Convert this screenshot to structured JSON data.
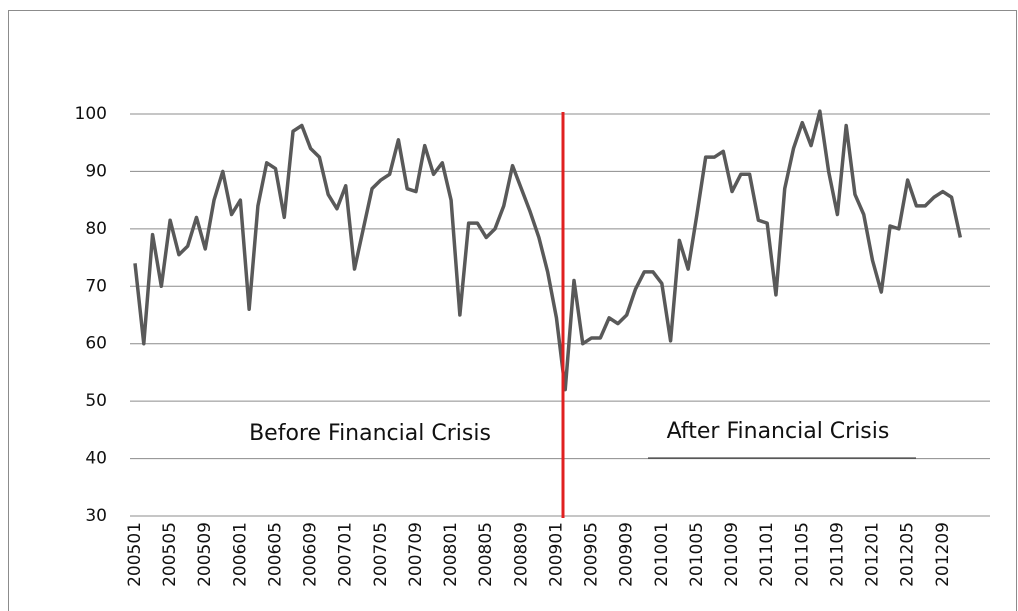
{
  "chart_data": {
    "type": "line",
    "categories": [
      "200501",
      null,
      null,
      null,
      "200505",
      null,
      null,
      null,
      "200509",
      null,
      null,
      null,
      "200601",
      null,
      null,
      null,
      "200605",
      null,
      null,
      null,
      "200609",
      null,
      null,
      null,
      "200701",
      null,
      null,
      null,
      "200705",
      null,
      null,
      null,
      "200709",
      null,
      null,
      null,
      "200801",
      null,
      null,
      null,
      "200805",
      null,
      null,
      null,
      "200809",
      null,
      null,
      null,
      "200901",
      null,
      null,
      null,
      "200905",
      null,
      null,
      null,
      "200909",
      null,
      null,
      null,
      "201001",
      null,
      null,
      null,
      "201005",
      null,
      null,
      null,
      "201009",
      null,
      null,
      null,
      "201101",
      null,
      null,
      null,
      "201105",
      null,
      null,
      null,
      "201109",
      null,
      null,
      null,
      "201201",
      null,
      null,
      null,
      "201205",
      null,
      null,
      null,
      "201209",
      null,
      null
    ],
    "series": [
      {
        "color": "#595959",
        "values": [
          74,
          60,
          79,
          70,
          81.5,
          75.5,
          77,
          82,
          76.5,
          85,
          90,
          82.5,
          85,
          66,
          84,
          91.5,
          90.5,
          82,
          97,
          98,
          94,
          92.5,
          86,
          83.5,
          87.5,
          73,
          80,
          87,
          88.5,
          89.5,
          95.5,
          87,
          86.5,
          94.5,
          89.5,
          91.5,
          85,
          65,
          81,
          81,
          78.5,
          80,
          84,
          91,
          87,
          83,
          78.5,
          72.5,
          64.5,
          52,
          71,
          60,
          61,
          61,
          64.5,
          63.5,
          65,
          69.5,
          72.5,
          72.5,
          70.5,
          60.5,
          78,
          73,
          82.5,
          92.5,
          92.5,
          93.5,
          86.5,
          89.5,
          89.5,
          81.5,
          81,
          68.5,
          87,
          94,
          98.5,
          94.5,
          100.5,
          90,
          82.5,
          98,
          86,
          82.5,
          74.5,
          69,
          80.5,
          80,
          88.5,
          84,
          84,
          85.5,
          86.5,
          85.5,
          78.5
        ]
      }
    ],
    "ylim": [
      30,
      100
    ],
    "yticks": [
      30,
      40,
      50,
      60,
      70,
      80,
      90,
      100
    ],
    "grid": true,
    "annotations": [
      "Before Financial Crisis",
      "After Financial Crisis"
    ]
  }
}
